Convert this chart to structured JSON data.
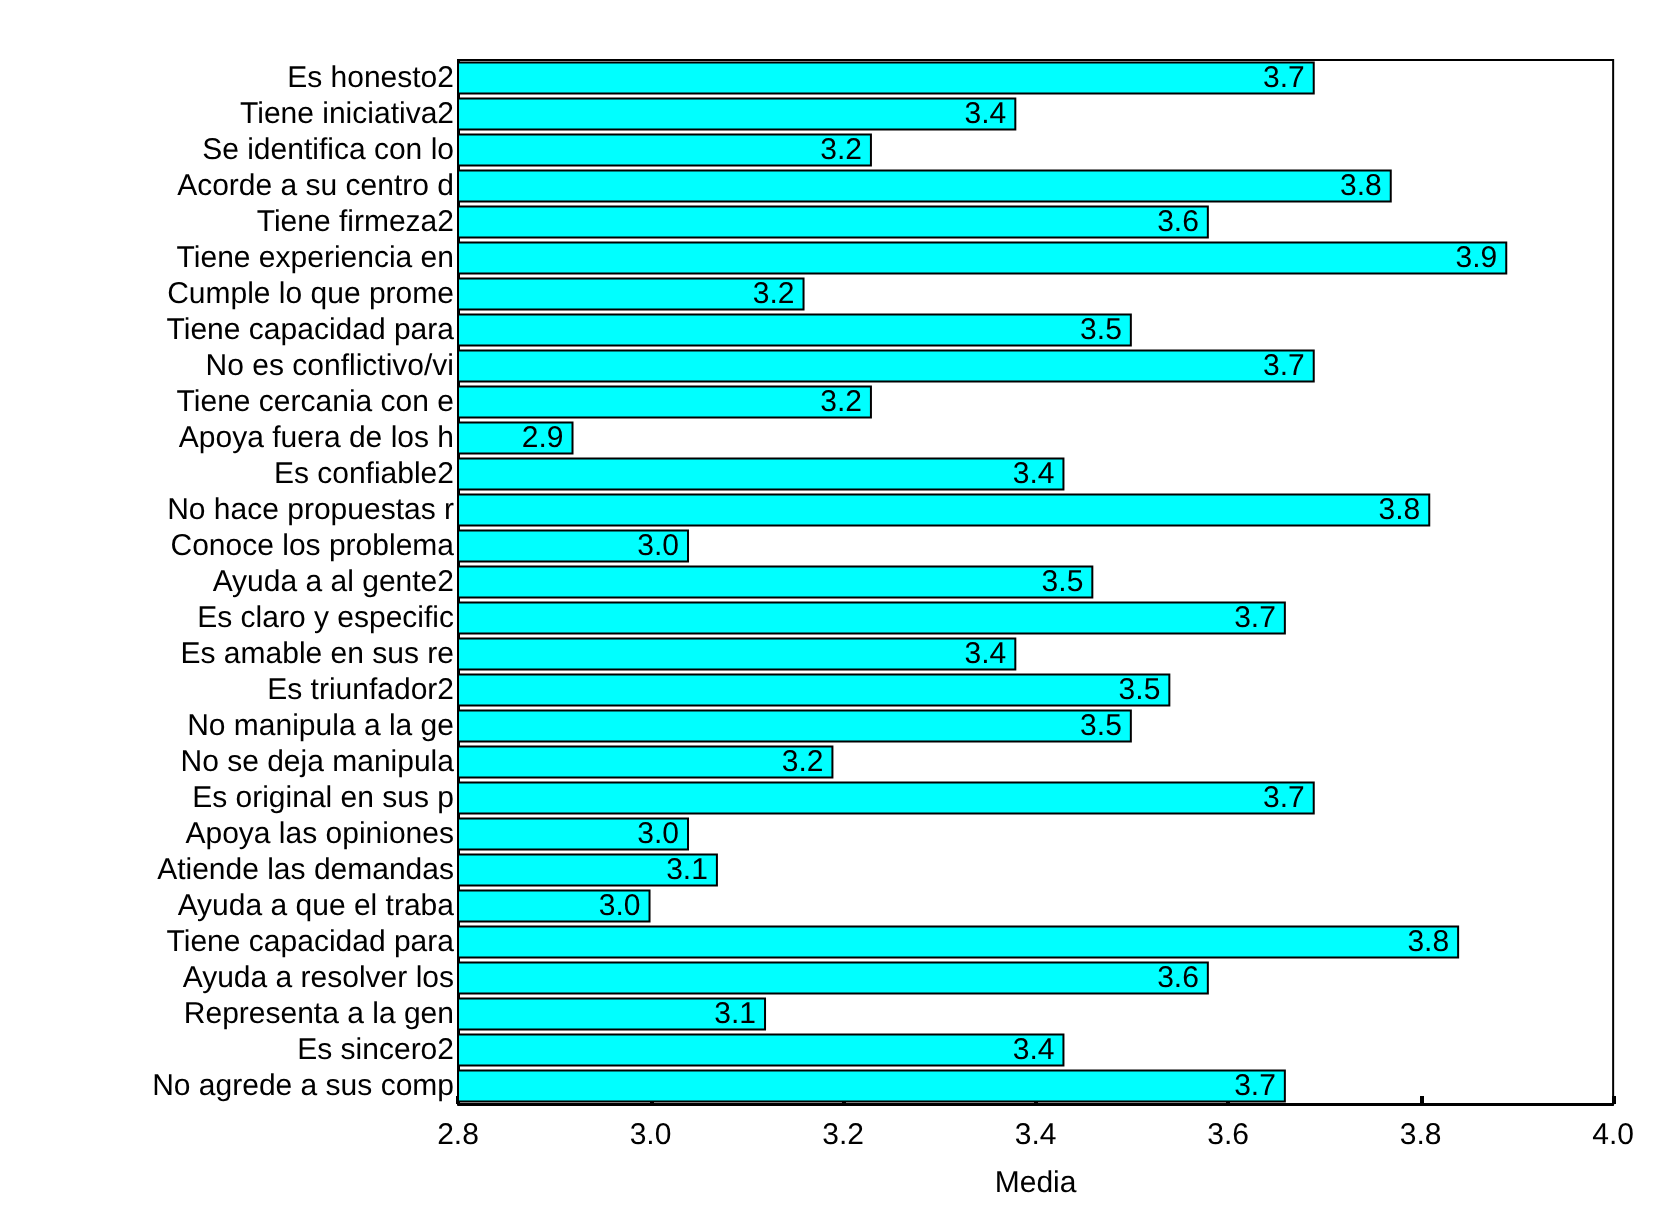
{
  "chart_data": {
    "type": "bar",
    "orientation": "horizontal",
    "xlabel": "Media",
    "categories": [
      "Es honesto2",
      "Tiene iniciativa2",
      "Se identifica con lo",
      "Acorde a su centro d",
      "Tiene firmeza2",
      "Tiene experiencia en",
      "Cumple lo que prome",
      "Tiene capacidad para",
      "No es conflictivo/vi",
      "Tiene cercania con e",
      "Apoya fuera de los h",
      "Es confiable2",
      "No hace propuestas r",
      "Conoce los problema",
      "Ayuda a al gente2",
      "Es claro y especific",
      "Es amable en sus re",
      "Es triunfador2",
      "No manipula a la ge",
      "No se deja manipula",
      "Es original en sus p",
      "Apoya las opiniones",
      "Atiende las demandas",
      "Ayuda a que el traba",
      "Tiene capacidad para",
      "Ayuda a resolver los",
      "Representa a la gen",
      "Es sincero2",
      "No agrede a sus comp"
    ],
    "values": [
      3.69,
      3.38,
      3.23,
      3.77,
      3.58,
      3.89,
      3.16,
      3.5,
      3.69,
      3.23,
      2.92,
      3.43,
      3.81,
      3.04,
      3.46,
      3.66,
      3.38,
      3.54,
      3.5,
      3.19,
      3.69,
      3.04,
      3.07,
      3.0,
      3.84,
      3.58,
      3.12,
      3.43,
      3.66
    ],
    "value_labels": [
      "3.7",
      "3.4",
      "3.2",
      "3.8",
      "3.6",
      "3.9",
      "3.2",
      "3.5",
      "3.7",
      "3.2",
      "2.9",
      "3.4",
      "3.8",
      "3.0",
      "3.5",
      "3.7",
      "3.4",
      "3.5",
      "3.5",
      "3.2",
      "3.7",
      "3.0",
      "3.1",
      "3.0",
      "3.8",
      "3.6",
      "3.1",
      "3.4",
      "3.7"
    ],
    "color": "#00ffff",
    "xlim": [
      2.8,
      4.0
    ],
    "xticks": [
      2.8,
      {
        "value": 3,
        "label": "3.0"
      },
      3.2,
      3.4,
      3.6,
      3.8,
      {
        "value": 4,
        "label": "4.0"
      }
    ]
  }
}
